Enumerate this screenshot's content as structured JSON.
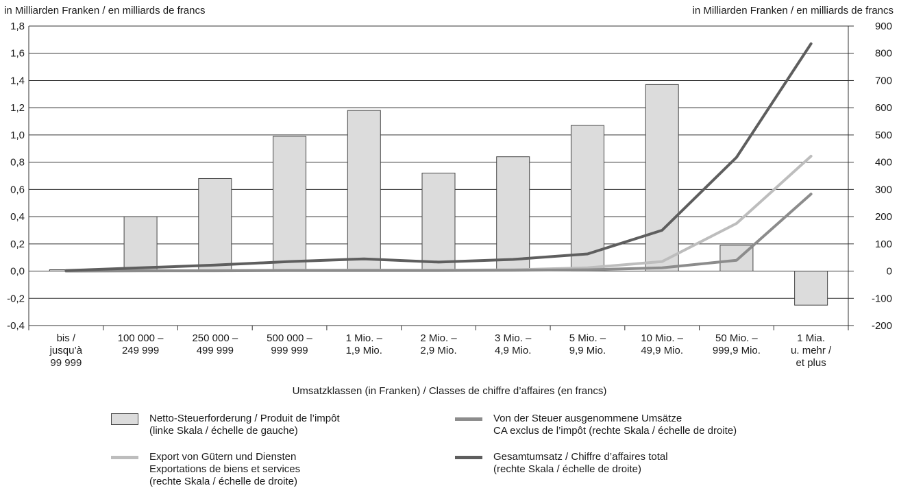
{
  "unit_left": "in Milliarden Franken / en milliards de francs",
  "unit_right": "in Milliarden Franken / en milliards de francs",
  "x_title": "Umsatzklassen (in Franken) / Classes de chiffre d’affaires (en francs)",
  "colors": {
    "bar_fill": "#dcdcdc",
    "bar_stroke": "#444444",
    "export": "#bdbdbd",
    "exempt": "#8c8c8c",
    "total": "#5e5e5e",
    "axis": "#333333"
  },
  "legend": [
    {
      "swatch": "bar",
      "color": "#dcdcdc",
      "lines": [
        "Netto-Steuerforderung / Produit de l’impôt",
        "(linke Skala / échelle de gauche)"
      ]
    },
    {
      "swatch": "line",
      "color": "#bdbdbd",
      "lines": [
        "Export von Gütern und Diensten",
        "Exportations de biens et services",
        "(rechte Skala / échelle de droite)"
      ]
    },
    {
      "swatch": "line",
      "color": "#8c8c8c",
      "lines": [
        "Von der Steuer ausgenommene Umsätze",
        "CA exclus de l’impôt  (rechte Skala / échelle de droite)"
      ]
    },
    {
      "swatch": "line",
      "color": "#5e5e5e",
      "lines": [
        "Gesamtumsatz / Chiffre d’affaires total",
        "(rechte Skala / échelle de droite)"
      ]
    }
  ],
  "chart_data": {
    "type": "bar",
    "categories": [
      [
        "bis /",
        "jusqu’à",
        "99 999"
      ],
      [
        "100 000 –",
        "249 999"
      ],
      [
        "250 000 –",
        "499 999"
      ],
      [
        "500 000 –",
        "999 999"
      ],
      [
        "1 Mio. –",
        "1,9 Mio."
      ],
      [
        "2 Mio. –",
        "2,9 Mio."
      ],
      [
        "3 Mio. –",
        "4,9 Mio."
      ],
      [
        "5 Mio. –",
        "9,9 Mio."
      ],
      [
        "10 Mio. –",
        "49,9 Mio."
      ],
      [
        "50 Mio. –",
        "999,9 Mio."
      ],
      [
        "1 Mia.",
        "u. mehr /",
        "et plus"
      ]
    ],
    "left_axis": {
      "ylim": [
        -0.4,
        1.8
      ],
      "ticks": [
        -0.4,
        -0.2,
        0.0,
        0.2,
        0.4,
        0.6,
        0.8,
        1.0,
        1.2,
        1.4,
        1.6,
        1.8
      ],
      "tick_labels": [
        "-0,4",
        "-0,2",
        "0,0",
        "0,2",
        "0,4",
        "0,6",
        "0,8",
        "1,0",
        "1,2",
        "1,4",
        "1,6",
        "1,8"
      ]
    },
    "right_axis": {
      "ylim": [
        -200,
        900
      ],
      "ticks": [
        -200,
        -100,
        0,
        100,
        200,
        300,
        400,
        500,
        600,
        700,
        800,
        900
      ],
      "tick_labels": [
        "-200",
        "-100",
        "0",
        "100",
        "200",
        "300",
        "400",
        "500",
        "600",
        "700",
        "800",
        "900"
      ]
    },
    "grid": true,
    "bars": {
      "name": "Netto-Steuerforderung / Produit de l’impôt",
      "axis": "left",
      "values": [
        0.01,
        0.4,
        0.68,
        0.99,
        1.18,
        0.72,
        0.84,
        1.07,
        1.37,
        0.19,
        -0.25
      ]
    },
    "series": [
      {
        "name": "Export von Gütern und Diensten",
        "axis": "right",
        "values": [
          0,
          1,
          2,
          3,
          4,
          3,
          5,
          12,
          35,
          175,
          422
        ]
      },
      {
        "name": "Von der Steuer ausgenommene Umsätze",
        "axis": "right",
        "values": [
          0,
          1,
          1,
          2,
          2,
          2,
          3,
          5,
          12,
          40,
          283
        ]
      },
      {
        "name": "Gesamtumsatz / Chiffre d’affaires total",
        "axis": "right",
        "values": [
          2,
          12,
          22,
          35,
          45,
          33,
          43,
          63,
          150,
          418,
          835
        ]
      }
    ]
  }
}
